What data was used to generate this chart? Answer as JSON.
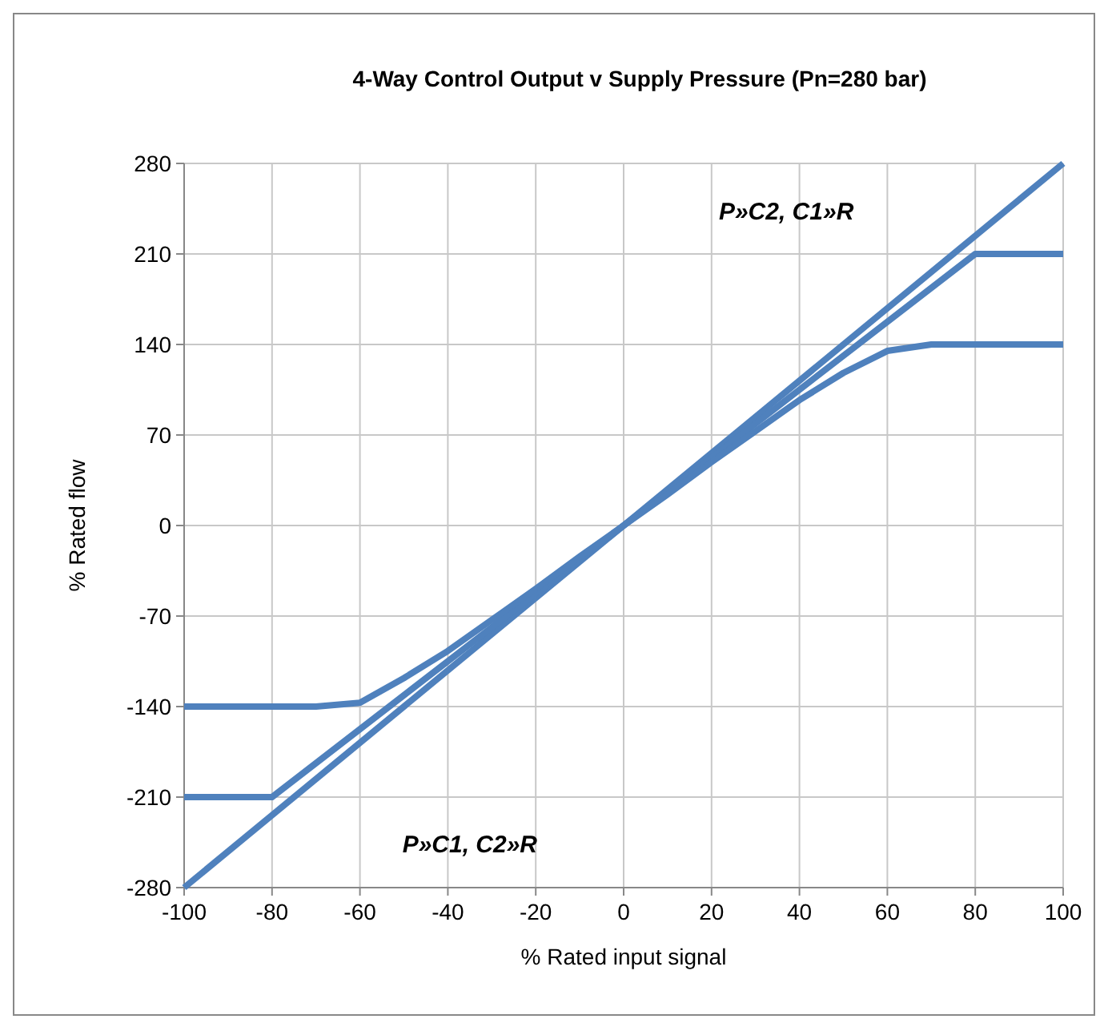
{
  "chart_data": {
    "type": "line",
    "title": "4-Way Control Output v Supply Pressure (Pn=280 bar)",
    "xlabel": "% Rated input signal",
    "ylabel": "% Rated flow",
    "xlim": [
      -100,
      100
    ],
    "xticks": [
      -100,
      -80,
      -60,
      -40,
      -20,
      0,
      20,
      40,
      60,
      80,
      100
    ],
    "ylim": [
      -280,
      280
    ],
    "yticks": [
      -280,
      -210,
      -140,
      -70,
      0,
      70,
      140,
      210,
      280
    ],
    "grid": true,
    "marker": "none",
    "line_style": "solid",
    "series": [
      {
        "color": "#4f81bd",
        "x": [
          -100,
          100
        ],
        "values": [
          -280,
          280
        ]
      },
      {
        "color": "#4f81bd",
        "x": [
          -100,
          -80,
          80,
          100
        ],
        "values": [
          -210,
          -210,
          210,
          210
        ]
      },
      {
        "color": "#4f81bd",
        "x": [
          -100,
          -70,
          -60,
          -50,
          -40,
          -30,
          -20,
          -10,
          0,
          10,
          20,
          30,
          40,
          50,
          60,
          70,
          80,
          90,
          100
        ],
        "values": [
          -140,
          -140,
          -137,
          -118,
          -97,
          -73,
          -49,
          -24,
          0,
          24,
          49,
          73,
          97,
          118,
          135,
          140,
          140,
          140,
          140
        ]
      }
    ],
    "annotations": [
      "P»C2, C1»R",
      "P»C1, C2»R"
    ]
  }
}
